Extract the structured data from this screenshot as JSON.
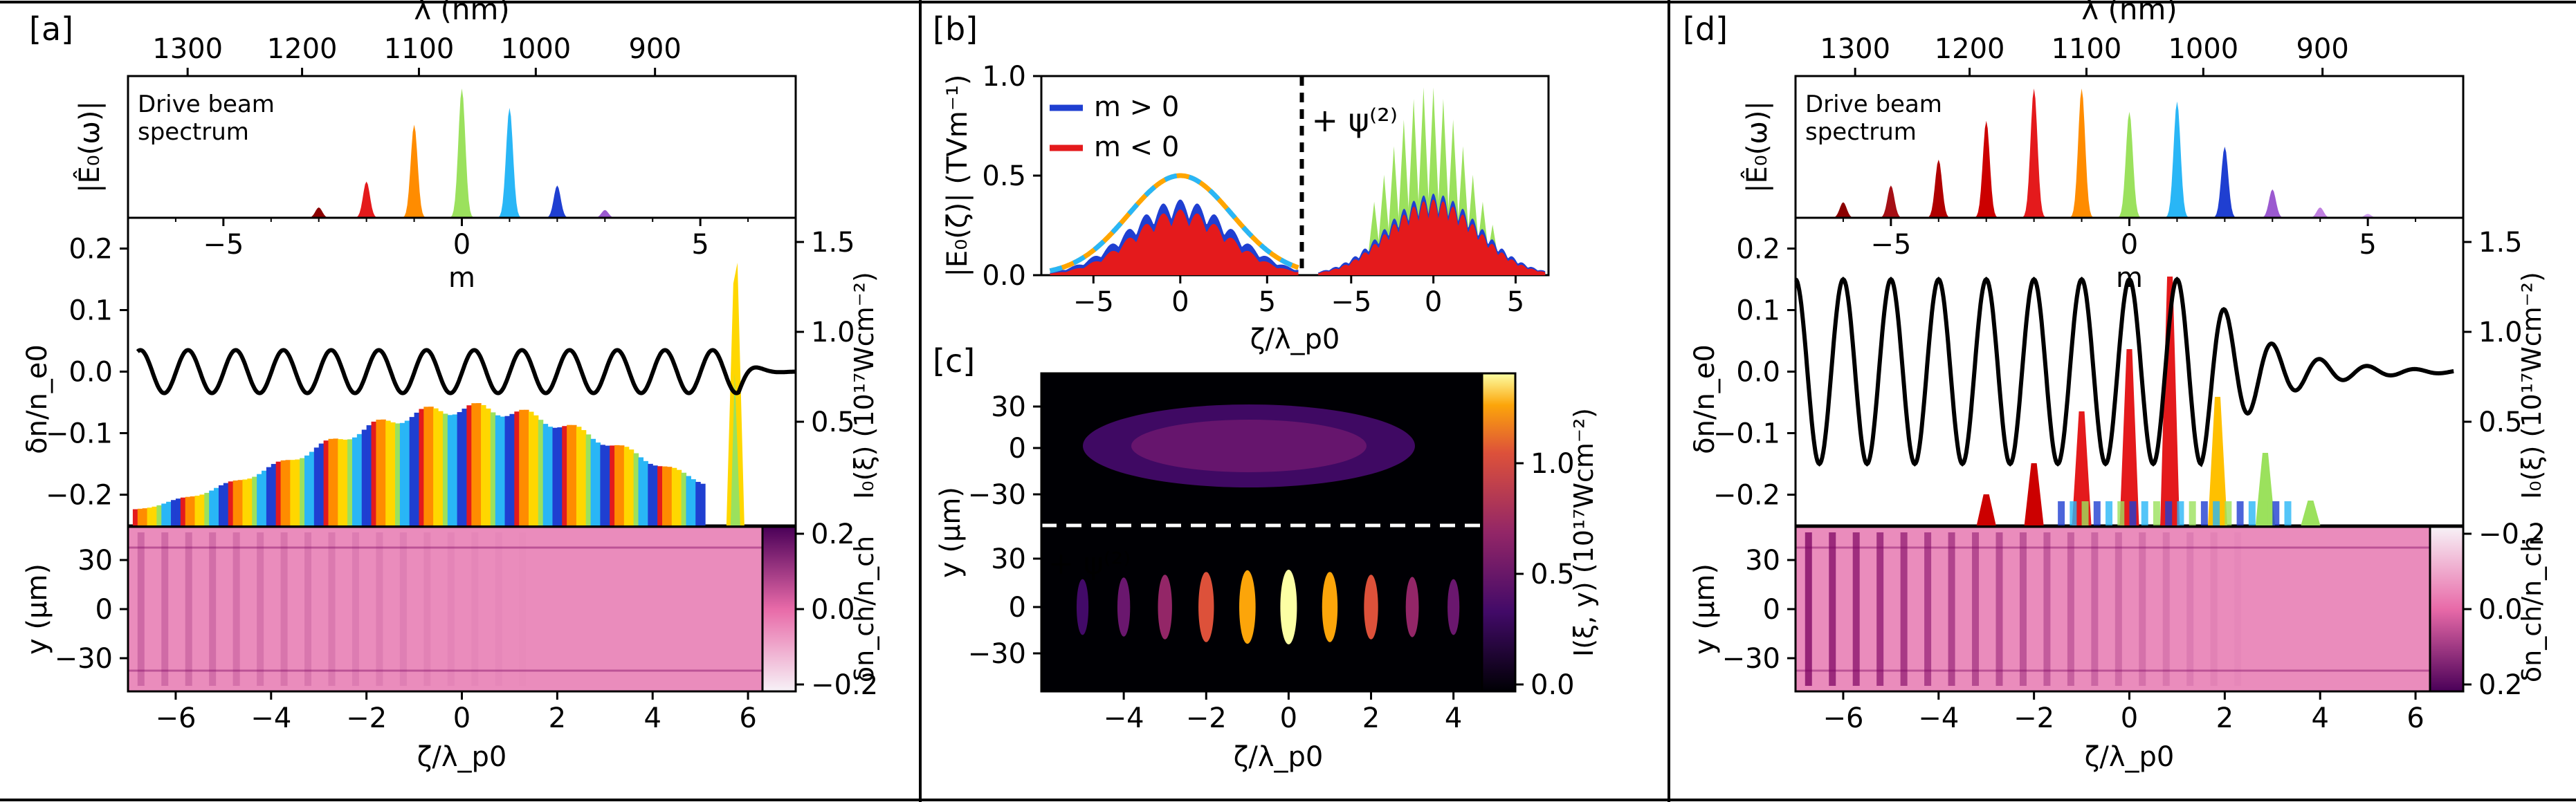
{
  "panels": {
    "a": {
      "label": "[a]"
    },
    "b": {
      "label": "[b]"
    },
    "c": {
      "label": "[c]"
    },
    "d": {
      "label": "[d]"
    }
  },
  "chart_data": [
    {
      "id": "a-spectrum",
      "type": "area",
      "top_axis_label": "λ (nm)",
      "top_ticks": [
        "1300",
        "1200",
        "1100",
        "1000",
        "900"
      ],
      "ylabel": "|Ê₀(ω)|",
      "xlabel": "m",
      "annotation": "Drive beam spectrum",
      "xlim": [
        -7,
        7
      ],
      "x_ticks": [
        -5,
        0,
        5
      ],
      "peaks": [
        {
          "m": -3,
          "height": 0.08,
          "color": "#8b0000"
        },
        {
          "m": -2,
          "height": 0.28,
          "color": "#e41a1c"
        },
        {
          "m": -1,
          "height": 0.72,
          "color": "#ff8c00"
        },
        {
          "m": 0,
          "height": 1.0,
          "color": "#9be15d"
        },
        {
          "m": 1,
          "height": 0.85,
          "color": "#29b6f6"
        },
        {
          "m": 2,
          "height": 0.25,
          "color": "#1f3fd1"
        },
        {
          "m": 3,
          "height": 0.06,
          "color": "#9b59d0"
        }
      ]
    },
    {
      "id": "a-wake",
      "type": "line",
      "ylabel": "δn/n_e0",
      "right_ylabel": "I₀(ξ) (10¹⁷Wcm⁻²)",
      "ylim": [
        -0.25,
        0.25
      ],
      "y_ticks": [
        -0.2,
        -0.1,
        0.0,
        0.1,
        0.2
      ],
      "right_ticks": [
        "0.5",
        "1.0",
        "1.5"
      ],
      "oscillation": {
        "amplitude": 0.035,
        "period": 1.0,
        "start": -6.8,
        "end": 5.8
      },
      "intensity_envelope": {
        "center": 0.1,
        "width": 3.5,
        "peak": 0.65,
        "unit": "10¹⁷Wcm⁻²"
      },
      "spike": {
        "x": 5.75,
        "peak": 0.95
      }
    },
    {
      "id": "a-density",
      "type": "heatmap",
      "ylabel": "y (μm)",
      "xlabel": "ζ/λ_p0",
      "y_ticks": [
        30,
        0,
        -30
      ],
      "x_ticks": [
        -6,
        -4,
        -2,
        0,
        2,
        4,
        6
      ],
      "xlim": [
        -7,
        7
      ],
      "colorbar_label": "δn_ch/n_ch",
      "colorbar_ticks": [
        "0.2",
        "0.0",
        "−0.2"
      ]
    },
    {
      "id": "b-field",
      "type": "area",
      "ylabel": "|E₀(ζ)| (TVm⁻¹)",
      "xlabel": "ζ/λ_p0",
      "ylim": [
        0,
        1.0
      ],
      "y_ticks": [
        0.0,
        0.5,
        1.0
      ],
      "x_ticks": [
        -5,
        0,
        5,
        -5,
        0,
        5
      ],
      "legend": [
        {
          "name": "m > 0",
          "color": "#1f3fd1"
        },
        {
          "name": "m < 0",
          "color": "#e41a1c"
        }
      ],
      "annotation": "+ ψ⁽²⁾",
      "left_half": {
        "envelope_peak": 0.5,
        "blue_peak": 0.38,
        "red_peak": 0.33
      },
      "right_half": {
        "green_peak": 0.95,
        "red_peak": 0.38
      }
    },
    {
      "id": "c-intensity",
      "type": "heatmap",
      "ylabel": "y (μm)",
      "xlabel": "ζ/λ_p0",
      "y_ticks": [
        30,
        0,
        -30
      ],
      "x_ticks": [
        -4,
        -2,
        0,
        2,
        4
      ],
      "annotation": "+ ψ⁽²⁾",
      "colorbar_label": "I(ξ, y) (10¹⁷Wcm⁻²)",
      "colorbar_ticks": [
        "0.0",
        "0.5",
        "1.0"
      ]
    },
    {
      "id": "d-spectrum",
      "type": "area",
      "top_axis_label": "λ (nm)",
      "top_ticks": [
        "1300",
        "1200",
        "1100",
        "1000",
        "900"
      ],
      "ylabel": "|Ê₀(ω)|",
      "xlabel": "m",
      "annotation": "Drive beam spectrum",
      "xlim": [
        -7,
        7
      ],
      "x_ticks": [
        -5,
        0,
        5
      ],
      "peaks": [
        {
          "m": -6,
          "height": 0.12,
          "color": "#8b0000"
        },
        {
          "m": -5,
          "height": 0.25,
          "color": "#a50f15"
        },
        {
          "m": -4,
          "height": 0.45,
          "color": "#b00000"
        },
        {
          "m": -3,
          "height": 0.75,
          "color": "#cc0000"
        },
        {
          "m": -2,
          "height": 1.0,
          "color": "#e41a1c"
        },
        {
          "m": -1,
          "height": 1.0,
          "color": "#ff8c00"
        },
        {
          "m": 0,
          "height": 0.82,
          "color": "#9be15d"
        },
        {
          "m": 1,
          "height": 0.9,
          "color": "#29b6f6"
        },
        {
          "m": 2,
          "height": 0.55,
          "color": "#1f3fd1"
        },
        {
          "m": 3,
          "height": 0.22,
          "color": "#9b59d0"
        },
        {
          "m": 4,
          "height": 0.08,
          "color": "#c080e0"
        },
        {
          "m": 5,
          "height": 0.03,
          "color": "#d0a0f0"
        }
      ]
    },
    {
      "id": "d-wake",
      "type": "line",
      "ylabel": "δn/n_e0",
      "right_ylabel": "I₀(ξ) (10¹⁷Wcm⁻²)",
      "ylim": [
        -0.25,
        0.25
      ],
      "y_ticks": [
        -0.2,
        -0.1,
        0.0,
        0.1,
        0.2
      ],
      "right_ticks": [
        "0.5",
        "1.0",
        "1.5"
      ],
      "oscillation": {
        "amplitude": 0.15,
        "period": 1.0,
        "start": -7.0,
        "end": 6.8
      },
      "pulse_train": [
        {
          "x": -3,
          "height": 0.15,
          "color": "#cc0000"
        },
        {
          "x": -2,
          "height": 0.3,
          "color": "#cc0000"
        },
        {
          "x": -1,
          "height": 0.55,
          "color": "#e41a1c"
        },
        {
          "x": 0,
          "height": 0.85,
          "color": "#e41a1c"
        },
        {
          "x": 0.85,
          "height": 1.2,
          "color": "#e41a1c"
        },
        {
          "x": 1.85,
          "height": 0.62,
          "color": "#ffc000"
        },
        {
          "x": 2.85,
          "height": 0.35,
          "color": "#9be15d"
        },
        {
          "x": 3.8,
          "height": 0.12,
          "color": "#9be15d"
        }
      ]
    },
    {
      "id": "d-density",
      "type": "heatmap",
      "ylabel": "y (μm)",
      "xlabel": "ζ/λ_p0",
      "y_ticks": [
        30,
        0,
        -30
      ],
      "x_ticks": [
        -6,
        -4,
        -2,
        0,
        2,
        4,
        6
      ],
      "xlim": [
        -7,
        7
      ],
      "colorbar_label": "δn_ch/n_ch",
      "colorbar_ticks": [
        "−0.2",
        "0.0",
        "0.2"
      ]
    }
  ]
}
